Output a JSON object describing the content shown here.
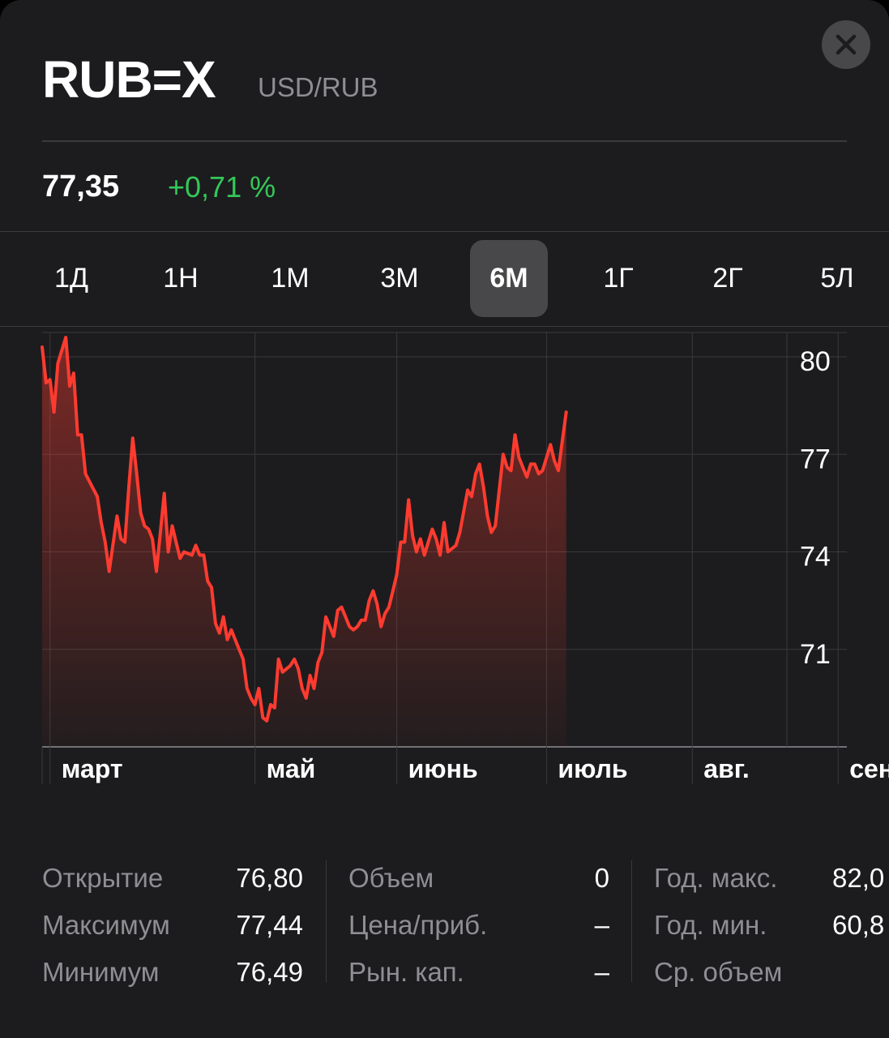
{
  "header": {
    "symbol": "RUB=X",
    "pair": "USD/RUB",
    "price": "77,35",
    "change": "+0,71 %"
  },
  "colors": {
    "background": "#1c1c1e",
    "positive": "#34c759",
    "line": "#ff3b30",
    "muted": "#8e8e93"
  },
  "tabs": [
    {
      "label": "1Д",
      "active": false
    },
    {
      "label": "1Н",
      "active": false
    },
    {
      "label": "1М",
      "active": false
    },
    {
      "label": "3М",
      "active": false
    },
    {
      "label": "6М",
      "active": true
    },
    {
      "label": "1Г",
      "active": false
    },
    {
      "label": "2Г",
      "active": false
    },
    {
      "label": "5Л",
      "active": false
    }
  ],
  "chart_data": {
    "type": "area",
    "title": "",
    "xlabel": "",
    "ylabel": "",
    "y_axis_position": "right",
    "grid": true,
    "ylim": [
      68,
      80.75
    ],
    "yticks": [
      80,
      77,
      74,
      71
    ],
    "ytick_labels": [
      "80",
      "77",
      "74",
      "71"
    ],
    "xlim": [
      "2021-03-08",
      "2021-09-13"
    ],
    "month_labels": [
      {
        "label": "март",
        "date": "2021-03-10"
      },
      {
        "label": "май",
        "date": "2021-05-01"
      },
      {
        "label": "июнь",
        "date": "2021-06-06"
      },
      {
        "label": "июль",
        "date": "2021-07-14"
      },
      {
        "label": "авг.",
        "date": "2021-08-20"
      },
      {
        "label": "сент.",
        "date": "2021-09-26"
      }
    ],
    "series": [
      {
        "values": [
          [
            "2021-03-08",
            80.3
          ],
          [
            "2021-03-09",
            79.2
          ],
          [
            "2021-03-10",
            79.3
          ],
          [
            "2021-03-11",
            78.3
          ],
          [
            "2021-03-12",
            79.8
          ],
          [
            "2021-03-14",
            80.6
          ],
          [
            "2021-03-15",
            79.1
          ],
          [
            "2021-03-16",
            79.5
          ],
          [
            "2021-03-17",
            77.6
          ],
          [
            "2021-03-18",
            77.6
          ],
          [
            "2021-03-19",
            76.4
          ],
          [
            "2021-03-22",
            75.7
          ],
          [
            "2021-03-23",
            74.9
          ],
          [
            "2021-03-24",
            74.3
          ],
          [
            "2021-03-25",
            73.4
          ],
          [
            "2021-03-27",
            75.1
          ],
          [
            "2021-03-28",
            74.4
          ],
          [
            "2021-03-29",
            74.3
          ],
          [
            "2021-03-30",
            76.0
          ],
          [
            "2021-03-31",
            77.5
          ],
          [
            "2021-04-01",
            76.4
          ],
          [
            "2021-04-02",
            75.2
          ],
          [
            "2021-04-03",
            74.8
          ],
          [
            "2021-04-04",
            74.7
          ],
          [
            "2021-04-05",
            74.4
          ],
          [
            "2021-04-06",
            73.4
          ],
          [
            "2021-04-07",
            74.6
          ],
          [
            "2021-04-08",
            75.8
          ],
          [
            "2021-04-09",
            74.0
          ],
          [
            "2021-04-10",
            74.8
          ],
          [
            "2021-04-11",
            74.3
          ],
          [
            "2021-04-12",
            73.8
          ],
          [
            "2021-04-13",
            74.0
          ],
          [
            "2021-04-15",
            73.9
          ],
          [
            "2021-04-16",
            74.2
          ],
          [
            "2021-04-17",
            73.9
          ],
          [
            "2021-04-18",
            73.9
          ],
          [
            "2021-04-19",
            73.1
          ],
          [
            "2021-04-20",
            72.9
          ],
          [
            "2021-04-21",
            71.8
          ],
          [
            "2021-04-22",
            71.5
          ],
          [
            "2021-04-23",
            72.0
          ],
          [
            "2021-04-24",
            71.3
          ],
          [
            "2021-04-25",
            71.6
          ],
          [
            "2021-04-27",
            71.0
          ],
          [
            "2021-04-28",
            70.7
          ],
          [
            "2021-04-29",
            69.8
          ],
          [
            "2021-04-30",
            69.5
          ],
          [
            "2021-05-01",
            69.3
          ],
          [
            "2021-05-02",
            69.8
          ],
          [
            "2021-05-03",
            68.9
          ],
          [
            "2021-05-04",
            68.8
          ],
          [
            "2021-05-05",
            69.3
          ],
          [
            "2021-05-06",
            69.2
          ],
          [
            "2021-05-07",
            70.7
          ],
          [
            "2021-05-08",
            70.3
          ],
          [
            "2021-05-09",
            70.4
          ],
          [
            "2021-05-10",
            70.5
          ],
          [
            "2021-05-11",
            70.7
          ],
          [
            "2021-05-12",
            70.4
          ],
          [
            "2021-05-13",
            69.8
          ],
          [
            "2021-05-14",
            69.5
          ],
          [
            "2021-05-15",
            70.2
          ],
          [
            "2021-05-16",
            69.8
          ],
          [
            "2021-05-17",
            70.6
          ],
          [
            "2021-05-18",
            70.9
          ],
          [
            "2021-05-19",
            72.0
          ],
          [
            "2021-05-20",
            71.7
          ],
          [
            "2021-05-21",
            71.4
          ],
          [
            "2021-05-22",
            72.2
          ],
          [
            "2021-05-23",
            72.3
          ],
          [
            "2021-05-24",
            72.0
          ],
          [
            "2021-05-25",
            71.7
          ],
          [
            "2021-05-26",
            71.6
          ],
          [
            "2021-05-27",
            71.7
          ],
          [
            "2021-05-28",
            71.9
          ],
          [
            "2021-05-29",
            71.9
          ],
          [
            "2021-05-30",
            72.5
          ],
          [
            "2021-05-31",
            72.8
          ],
          [
            "2021-06-01",
            72.4
          ],
          [
            "2021-06-02",
            71.7
          ],
          [
            "2021-06-03",
            72.1
          ],
          [
            "2021-06-04",
            72.3
          ],
          [
            "2021-06-05",
            72.8
          ],
          [
            "2021-06-06",
            73.3
          ],
          [
            "2021-06-07",
            74.3
          ],
          [
            "2021-06-08",
            74.3
          ],
          [
            "2021-06-09",
            75.6
          ],
          [
            "2021-06-10",
            74.5
          ],
          [
            "2021-06-11",
            74.0
          ],
          [
            "2021-06-12",
            74.4
          ],
          [
            "2021-06-13",
            73.9
          ],
          [
            "2021-06-14",
            74.3
          ],
          [
            "2021-06-15",
            74.7
          ],
          [
            "2021-06-16",
            74.4
          ],
          [
            "2021-06-17",
            73.9
          ],
          [
            "2021-06-18",
            74.9
          ],
          [
            "2021-06-19",
            74.0
          ],
          [
            "2021-06-20",
            74.1
          ],
          [
            "2021-06-21",
            74.2
          ],
          [
            "2021-06-22",
            74.6
          ],
          [
            "2021-06-24",
            75.9
          ],
          [
            "2021-06-25",
            75.7
          ],
          [
            "2021-06-26",
            76.4
          ],
          [
            "2021-06-27",
            76.7
          ],
          [
            "2021-06-28",
            76.0
          ],
          [
            "2021-06-29",
            75.1
          ],
          [
            "2021-06-30",
            74.6
          ],
          [
            "2021-07-01",
            74.8
          ],
          [
            "2021-07-03",
            77.0
          ],
          [
            "2021-07-04",
            76.6
          ],
          [
            "2021-07-05",
            76.5
          ],
          [
            "2021-07-06",
            77.6
          ],
          [
            "2021-07-07",
            76.9
          ],
          [
            "2021-07-08",
            76.6
          ],
          [
            "2021-07-09",
            76.3
          ],
          [
            "2021-07-10",
            76.7
          ],
          [
            "2021-07-11",
            76.7
          ],
          [
            "2021-07-12",
            76.4
          ],
          [
            "2021-07-13",
            76.5
          ],
          [
            "2021-07-15",
            77.3
          ],
          [
            "2021-07-16",
            76.8
          ],
          [
            "2021-07-17",
            76.5
          ],
          [
            "2021-07-18",
            77.4
          ],
          [
            "2021-07-19",
            78.3
          ]
        ]
      }
    ]
  },
  "stats": {
    "col1": [
      {
        "label": "Открытие",
        "value": "76,80"
      },
      {
        "label": "Максимум",
        "value": "77,44"
      },
      {
        "label": "Минимум",
        "value": "76,49"
      }
    ],
    "col2": [
      {
        "label": "Объем",
        "value": "0"
      },
      {
        "label": "Цена/приб.",
        "value": "–"
      },
      {
        "label": "Рын. кап.",
        "value": "–"
      }
    ],
    "col3": [
      {
        "label": "Год. макс.",
        "value": "82,0"
      },
      {
        "label": "Год. мин.",
        "value": "60,8"
      },
      {
        "label": "Ср. объем",
        "value": ""
      }
    ]
  }
}
